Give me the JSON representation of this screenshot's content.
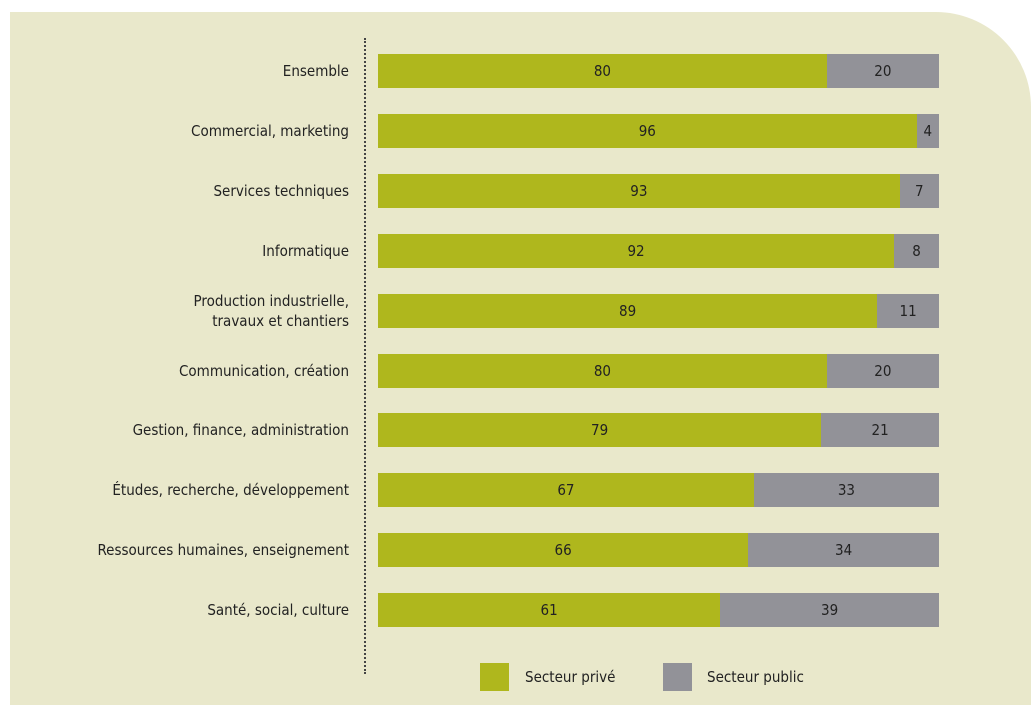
{
  "colors": {
    "private": "#afb71d",
    "public": "#929298",
    "background": "#e9e8cb"
  },
  "chart_data": {
    "type": "bar",
    "orientation": "horizontal",
    "stacked": true,
    "percent_stacked": true,
    "categories": [
      "Ensemble",
      "Commercial, marketing",
      "Services techniques",
      "Informatique",
      "Production industrielle, travaux et chantiers",
      "Communication, création",
      "Gestion, finance, administration",
      "Études, recherche, développement",
      "Ressources humaines, enseignement",
      "Santé, social, culture"
    ],
    "category_lines": [
      [
        "Ensemble"
      ],
      [
        "Commercial, marketing"
      ],
      [
        "Services techniques"
      ],
      [
        "Informatique"
      ],
      [
        "Production industrielle,",
        "travaux et chantiers"
      ],
      [
        "Communication, création"
      ],
      [
        "Gestion, finance, administration"
      ],
      [
        "Études, recherche, développement"
      ],
      [
        "Ressources humaines, enseignement"
      ],
      [
        "Santé, social, culture"
      ]
    ],
    "series": [
      {
        "name": "Secteur privé",
        "values": [
          80,
          96,
          93,
          92,
          89,
          80,
          79,
          67,
          66,
          61
        ]
      },
      {
        "name": "Secteur public",
        "values": [
          20,
          4,
          7,
          8,
          11,
          20,
          21,
          33,
          34,
          39
        ]
      }
    ],
    "xlim": [
      0,
      100
    ],
    "grid": false,
    "legend": "bottom-center",
    "data_labels": true
  }
}
